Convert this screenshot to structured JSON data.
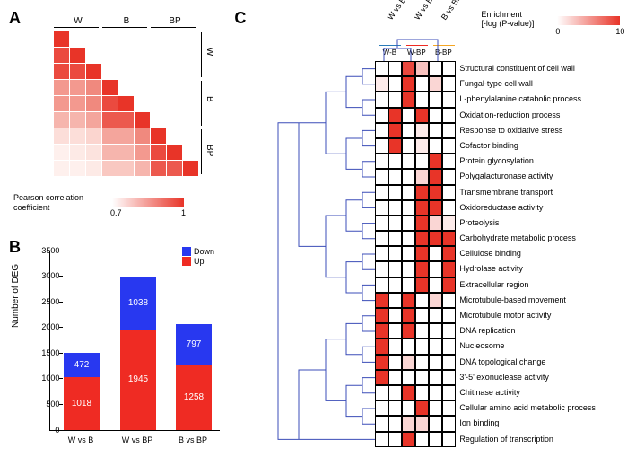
{
  "colors": {
    "up": "#ef2b23",
    "down": "#2838f0",
    "heat_max": "#e83428",
    "heat_min": "#ffffff",
    "dendro": "#3b4db8",
    "bar_wb": "#2b7bb9",
    "bar_wbp": "#ef2b23",
    "bar_bbp": "#f5a623"
  },
  "panelA": {
    "label": "A",
    "groups": [
      "W",
      "B",
      "BP"
    ],
    "pearson_label": "Pearson correlation\ncoefficient",
    "pearson_min": "0.7",
    "pearson_max": "1",
    "matrix_colors": [
      [
        "#e83428"
      ],
      [
        "#eb4a3f",
        "#e83428"
      ],
      [
        "#eb4a3f",
        "#eb4a3f",
        "#e83428"
      ],
      [
        "#f3998f",
        "#f3998f",
        "#f0897e",
        "#e83428"
      ],
      [
        "#f3998f",
        "#f3998f",
        "#f0897e",
        "#eb4a3f",
        "#e83428"
      ],
      [
        "#f6b5ad",
        "#f6b5ad",
        "#f4a59c",
        "#ec594e",
        "#ec594e",
        "#e83428"
      ],
      [
        "#fcded9",
        "#fcded9",
        "#fbd5cf",
        "#f4a59c",
        "#f4a59c",
        "#f0897e",
        "#e83428"
      ],
      [
        "#fef0ed",
        "#fdeae6",
        "#fce3de",
        "#f6b5ad",
        "#f6b5ad",
        "#f3998f",
        "#eb4a3f",
        "#e83428"
      ],
      [
        "#fef0ed",
        "#fef0ed",
        "#fdeae6",
        "#f9c8c1",
        "#f9c8c1",
        "#f6b5ad",
        "#ec594e",
        "#ec594e",
        "#e83428"
      ]
    ]
  },
  "panelB": {
    "label": "B",
    "y_label": "Number of DEG",
    "y_max": 3500,
    "y_step": 500,
    "legend": {
      "up": "Up",
      "down": "Down"
    },
    "bars": [
      {
        "x": "W vs B",
        "up": 1018,
        "down": 472
      },
      {
        "x": "W vs BP",
        "up": 1945,
        "down": 1038
      },
      {
        "x": "B vs BP",
        "up": 1258,
        "down": 797
      }
    ]
  },
  "panelC": {
    "label": "C",
    "comparisons": [
      "W vs B",
      "W vs BP",
      "B vs BP"
    ],
    "col_heads": [
      "W-B",
      "W-BP",
      "B-BP"
    ],
    "enrich_label": "Enrichment\n[-log (P-value)]",
    "enrich_min": "0",
    "enrich_max": "10",
    "rows": [
      {
        "label": "Structural constituent of cell wall",
        "vals": [
          [
            0,
            0
          ],
          [
            9,
            3
          ],
          [
            0,
            0
          ]
        ]
      },
      {
        "label": "Fungal-type cell wall",
        "vals": [
          [
            1,
            0
          ],
          [
            10,
            0
          ],
          [
            2,
            0
          ]
        ]
      },
      {
        "label": "L-phenylalanine catabolic process",
        "vals": [
          [
            0,
            0
          ],
          [
            10,
            0
          ],
          [
            0,
            0
          ]
        ]
      },
      {
        "label": "Oxidation-reduction process",
        "vals": [
          [
            0,
            10
          ],
          [
            0,
            10
          ],
          [
            0,
            0
          ]
        ]
      },
      {
        "label": "Response to oxidative stress",
        "vals": [
          [
            0,
            10
          ],
          [
            0,
            1
          ],
          [
            0,
            0
          ]
        ]
      },
      {
        "label": "Cofactor binding",
        "vals": [
          [
            0,
            10
          ],
          [
            0,
            1
          ],
          [
            0,
            0
          ]
        ]
      },
      {
        "label": "Protein glycosylation",
        "vals": [
          [
            0,
            0
          ],
          [
            0,
            0
          ],
          [
            10,
            0
          ]
        ]
      },
      {
        "label": "Polygalacturonase activity",
        "vals": [
          [
            0,
            0
          ],
          [
            0,
            2
          ],
          [
            10,
            0
          ]
        ]
      },
      {
        "label": "Transmembrane transport",
        "vals": [
          [
            0,
            0
          ],
          [
            0,
            10
          ],
          [
            10,
            0
          ]
        ]
      },
      {
        "label": "Oxidoreductase activity",
        "vals": [
          [
            0,
            0
          ],
          [
            0,
            10
          ],
          [
            10,
            0
          ]
        ]
      },
      {
        "label": "Proteolysis",
        "vals": [
          [
            0,
            0
          ],
          [
            0,
            10
          ],
          [
            2,
            1
          ]
        ]
      },
      {
        "label": "Carbohydrate metabolic process",
        "vals": [
          [
            0,
            0
          ],
          [
            0,
            10
          ],
          [
            10,
            10
          ]
        ]
      },
      {
        "label": "Cellulose binding",
        "vals": [
          [
            0,
            0
          ],
          [
            0,
            10
          ],
          [
            0,
            10
          ]
        ]
      },
      {
        "label": "Hydrolase activity",
        "vals": [
          [
            0,
            0
          ],
          [
            0,
            10
          ],
          [
            0,
            10
          ]
        ]
      },
      {
        "label": "Extracellular region",
        "vals": [
          [
            0,
            0
          ],
          [
            0,
            10
          ],
          [
            0,
            10
          ]
        ]
      },
      {
        "label": "Microtubule-based movement",
        "vals": [
          [
            10,
            0
          ],
          [
            10,
            0
          ],
          [
            2,
            0
          ]
        ]
      },
      {
        "label": "Microtubule motor activity",
        "vals": [
          [
            10,
            0
          ],
          [
            10,
            0
          ],
          [
            0,
            0
          ]
        ]
      },
      {
        "label": "DNA replication",
        "vals": [
          [
            10,
            0
          ],
          [
            10,
            0
          ],
          [
            0,
            0
          ]
        ]
      },
      {
        "label": "Nucleosome",
        "vals": [
          [
            10,
            0
          ],
          [
            0,
            0
          ],
          [
            0,
            0
          ]
        ]
      },
      {
        "label": "DNA topological change",
        "vals": [
          [
            10,
            0
          ],
          [
            2,
            0
          ],
          [
            0,
            0
          ]
        ]
      },
      {
        "label": "3'-5' exonuclease activity",
        "vals": [
          [
            10,
            0
          ],
          [
            0,
            0
          ],
          [
            0,
            0
          ]
        ]
      },
      {
        "label": "Chitinase activity",
        "vals": [
          [
            0,
            0
          ],
          [
            10,
            0
          ],
          [
            0,
            0
          ]
        ]
      },
      {
        "label": "Cellular amino acid metabolic process",
        "vals": [
          [
            0,
            0
          ],
          [
            0,
            10
          ],
          [
            0,
            0
          ]
        ]
      },
      {
        "label": "Ion binding",
        "vals": [
          [
            0,
            0
          ],
          [
            2,
            2
          ],
          [
            0,
            0
          ]
        ]
      },
      {
        "label": "Regulation of transcription",
        "vals": [
          [
            0,
            0
          ],
          [
            10,
            0
          ],
          [
            0,
            0
          ]
        ]
      }
    ]
  }
}
